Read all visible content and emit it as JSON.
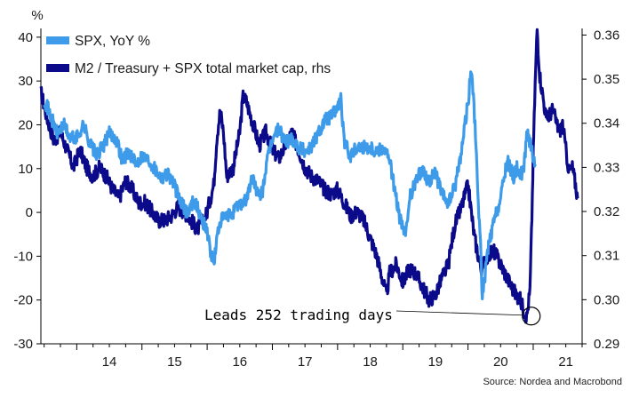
{
  "chart_data": {
    "type": "line",
    "title": "",
    "y_unit_label": "%",
    "left_axis": {
      "ylim": [
        -30,
        42
      ],
      "ticks": [
        40,
        30,
        20,
        10,
        0,
        -10,
        -20,
        -30
      ]
    },
    "right_axis": {
      "ylim": [
        0.29,
        0.3615
      ],
      "ticks": [
        0.36,
        0.35,
        0.34,
        0.33,
        0.32,
        0.31,
        0.3,
        0.29
      ]
    },
    "x_axis": {
      "xlim": [
        2013.45,
        2021.75
      ],
      "tick_labels": [
        "14",
        "15",
        "16",
        "17",
        "18",
        "19",
        "20",
        "21"
      ],
      "tick_label_positions": [
        2014.0,
        2015.0,
        2016.0,
        2017.0,
        2018.0,
        2019.0,
        2020.0,
        2021.0
      ]
    },
    "grid": false,
    "legend_position": "top-left",
    "series": [
      {
        "name": "SPX, YoY %",
        "axis": "left",
        "color": "#3d9be9",
        "points": [
          [
            2013.5,
            26
          ],
          [
            2013.6,
            22
          ],
          [
            2013.7,
            18
          ],
          [
            2013.8,
            20
          ],
          [
            2013.9,
            17
          ],
          [
            2014.0,
            17
          ],
          [
            2014.1,
            20
          ],
          [
            2014.2,
            16
          ],
          [
            2014.3,
            13
          ],
          [
            2014.4,
            15
          ],
          [
            2014.5,
            18
          ],
          [
            2014.6,
            17
          ],
          [
            2014.7,
            12
          ],
          [
            2014.8,
            14
          ],
          [
            2014.9,
            11
          ],
          [
            2015.0,
            13
          ],
          [
            2015.1,
            12
          ],
          [
            2015.2,
            10
          ],
          [
            2015.3,
            8
          ],
          [
            2015.4,
            9
          ],
          [
            2015.5,
            6
          ],
          [
            2015.6,
            2
          ],
          [
            2015.7,
            0
          ],
          [
            2015.8,
            3
          ],
          [
            2015.9,
            -1
          ],
          [
            2016.0,
            -4
          ],
          [
            2016.05,
            -9
          ],
          [
            2016.1,
            -12
          ],
          [
            2016.15,
            -6
          ],
          [
            2016.2,
            -2
          ],
          [
            2016.3,
            -1
          ],
          [
            2016.4,
            0
          ],
          [
            2016.5,
            2
          ],
          [
            2016.6,
            3
          ],
          [
            2016.7,
            8
          ],
          [
            2016.8,
            3
          ],
          [
            2016.85,
            5
          ],
          [
            2016.9,
            10
          ],
          [
            2017.0,
            17
          ],
          [
            2017.1,
            19
          ],
          [
            2017.2,
            16
          ],
          [
            2017.3,
            17
          ],
          [
            2017.4,
            15
          ],
          [
            2017.5,
            14
          ],
          [
            2017.6,
            15
          ],
          [
            2017.7,
            18
          ],
          [
            2017.8,
            21
          ],
          [
            2017.9,
            22
          ],
          [
            2018.0,
            24
          ],
          [
            2018.05,
            26
          ],
          [
            2018.1,
            16
          ],
          [
            2018.2,
            13
          ],
          [
            2018.3,
            15
          ],
          [
            2018.4,
            15
          ],
          [
            2018.5,
            15
          ],
          [
            2018.6,
            14
          ],
          [
            2018.7,
            15
          ],
          [
            2018.8,
            12
          ],
          [
            2018.9,
            3
          ],
          [
            2018.95,
            -1
          ],
          [
            2019.0,
            -4
          ],
          [
            2019.05,
            -5
          ],
          [
            2019.1,
            3
          ],
          [
            2019.2,
            7
          ],
          [
            2019.3,
            10
          ],
          [
            2019.4,
            7
          ],
          [
            2019.5,
            9
          ],
          [
            2019.6,
            4
          ],
          [
            2019.7,
            2
          ],
          [
            2019.8,
            6
          ],
          [
            2019.9,
            14
          ],
          [
            2019.95,
            20
          ],
          [
            2020.0,
            25
          ],
          [
            2020.05,
            33
          ],
          [
            2020.1,
            22
          ],
          [
            2020.15,
            5
          ],
          [
            2020.2,
            -10
          ],
          [
            2020.22,
            -20
          ],
          [
            2020.3,
            -9
          ],
          [
            2020.4,
            -2
          ],
          [
            2020.5,
            3
          ],
          [
            2020.6,
            12
          ],
          [
            2020.7,
            8
          ],
          [
            2020.75,
            10
          ],
          [
            2020.8,
            9
          ],
          [
            2020.85,
            9
          ],
          [
            2020.9,
            18
          ],
          [
            2020.95,
            16
          ],
          [
            2020.98,
            15
          ],
          [
            2021.0,
            12
          ],
          [
            2021.03,
            11
          ]
        ]
      },
      {
        "name": "M2 / Treasury + SPX total market cap, rhs",
        "axis": "right",
        "color": "#0b0a8a",
        "points": [
          [
            2013.45,
            0.347
          ],
          [
            2013.55,
            0.341
          ],
          [
            2013.65,
            0.336
          ],
          [
            2013.75,
            0.338
          ],
          [
            2013.85,
            0.334
          ],
          [
            2013.95,
            0.33
          ],
          [
            2014.05,
            0.334
          ],
          [
            2014.15,
            0.33
          ],
          [
            2014.25,
            0.328
          ],
          [
            2014.35,
            0.33
          ],
          [
            2014.45,
            0.328
          ],
          [
            2014.55,
            0.325
          ],
          [
            2014.65,
            0.323
          ],
          [
            2014.75,
            0.327
          ],
          [
            2014.85,
            0.325
          ],
          [
            2014.95,
            0.322
          ],
          [
            2015.05,
            0.322
          ],
          [
            2015.15,
            0.32
          ],
          [
            2015.25,
            0.318
          ],
          [
            2015.35,
            0.318
          ],
          [
            2015.45,
            0.319
          ],
          [
            2015.55,
            0.321
          ],
          [
            2015.65,
            0.32
          ],
          [
            2015.75,
            0.318
          ],
          [
            2015.85,
            0.316
          ],
          [
            2015.95,
            0.318
          ],
          [
            2016.0,
            0.32
          ],
          [
            2016.05,
            0.323
          ],
          [
            2016.1,
            0.326
          ],
          [
            2016.15,
            0.337
          ],
          [
            2016.2,
            0.343
          ],
          [
            2016.25,
            0.338
          ],
          [
            2016.3,
            0.328
          ],
          [
            2016.4,
            0.33
          ],
          [
            2016.5,
            0.338
          ],
          [
            2016.55,
            0.346
          ],
          [
            2016.6,
            0.345
          ],
          [
            2016.7,
            0.34
          ],
          [
            2016.8,
            0.335
          ],
          [
            2016.9,
            0.338
          ],
          [
            2017.0,
            0.334
          ],
          [
            2017.1,
            0.332
          ],
          [
            2017.2,
            0.335
          ],
          [
            2017.3,
            0.338
          ],
          [
            2017.4,
            0.334
          ],
          [
            2017.5,
            0.33
          ],
          [
            2017.6,
            0.328
          ],
          [
            2017.7,
            0.327
          ],
          [
            2017.8,
            0.325
          ],
          [
            2017.9,
            0.324
          ],
          [
            2018.0,
            0.325
          ],
          [
            2018.1,
            0.322
          ],
          [
            2018.2,
            0.319
          ],
          [
            2018.3,
            0.32
          ],
          [
            2018.4,
            0.318
          ],
          [
            2018.5,
            0.314
          ],
          [
            2018.6,
            0.31
          ],
          [
            2018.65,
            0.307
          ],
          [
            2018.7,
            0.304
          ],
          [
            2018.75,
            0.301
          ],
          [
            2018.8,
            0.306
          ],
          [
            2018.9,
            0.308
          ],
          [
            2019.0,
            0.304
          ],
          [
            2019.1,
            0.307
          ],
          [
            2019.2,
            0.306
          ],
          [
            2019.3,
            0.303
          ],
          [
            2019.4,
            0.3
          ],
          [
            2019.5,
            0.301
          ],
          [
            2019.6,
            0.305
          ],
          [
            2019.7,
            0.308
          ],
          [
            2019.75,
            0.313
          ],
          [
            2019.8,
            0.317
          ],
          [
            2019.9,
            0.321
          ],
          [
            2020.0,
            0.326
          ],
          [
            2020.1,
            0.314
          ],
          [
            2020.2,
            0.307
          ],
          [
            2020.3,
            0.31
          ],
          [
            2020.4,
            0.311
          ],
          [
            2020.5,
            0.308
          ],
          [
            2020.6,
            0.305
          ],
          [
            2020.7,
            0.302
          ],
          [
            2020.8,
            0.3
          ],
          [
            2020.85,
            0.298
          ],
          [
            2020.9,
            0.296
          ],
          [
            2020.95,
            0.302
          ],
          [
            2020.98,
            0.319
          ],
          [
            2021.0,
            0.333
          ],
          [
            2021.03,
            0.349
          ],
          [
            2021.06,
            0.3615
          ],
          [
            2021.1,
            0.351
          ],
          [
            2021.2,
            0.341
          ],
          [
            2021.3,
            0.343
          ],
          [
            2021.4,
            0.338
          ],
          [
            2021.45,
            0.34
          ],
          [
            2021.5,
            0.334
          ],
          [
            2021.55,
            0.329
          ],
          [
            2021.6,
            0.33
          ],
          [
            2021.65,
            0.326
          ],
          [
            2021.68,
            0.323
          ]
        ]
      }
    ],
    "annotation": {
      "text": "Leads 252 trading days",
      "target": [
        2020.97,
        0.2963
      ],
      "target_axis": "right"
    },
    "source": "Source: Nordea and Macrobond"
  }
}
